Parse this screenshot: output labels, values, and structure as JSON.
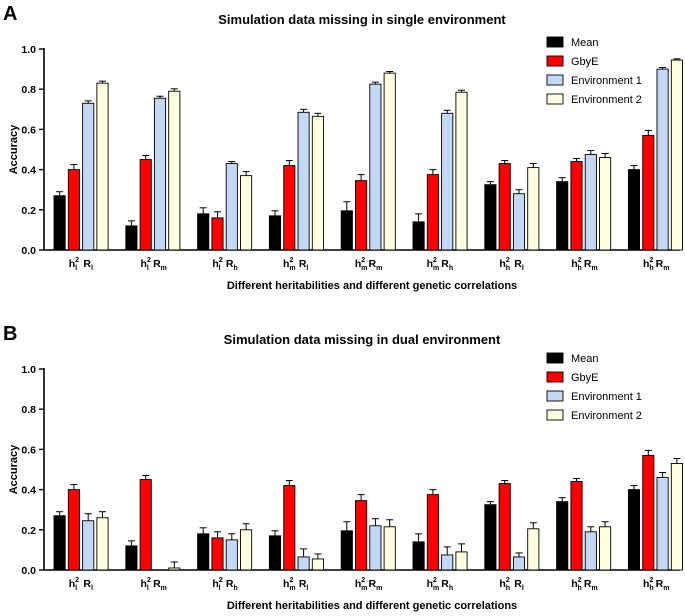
{
  "colors": {
    "Mean": "#000000",
    "GbyE": "#ff0000",
    "Environment 1": "#c3d8f5",
    "Environment 2": "#ffffe0"
  },
  "chart_data": [
    {
      "panel_label": "A",
      "type": "bar",
      "title": "Simulation data missing in single environment",
      "xlabel": "Different heritabilities and different genetic correlations",
      "ylabel": "Accuracy",
      "ylim": [
        0,
        1.0
      ],
      "yticks": [
        "0.0",
        "0.2",
        "0.4",
        "0.6",
        "0.8",
        "1.0"
      ],
      "legend_position": "top-right",
      "group_labels": [
        {
          "h": "l",
          "r": "l"
        },
        {
          "h": "l",
          "r": "m"
        },
        {
          "h": "l",
          "r": "h"
        },
        {
          "h": "m",
          "r": "l"
        },
        {
          "h": "m",
          "r": "m"
        },
        {
          "h": "m",
          "r": "h"
        },
        {
          "h": "h",
          "r": "l"
        },
        {
          "h": "h",
          "r": "m"
        },
        {
          "h": "h",
          "r": "m"
        }
      ],
      "series": [
        {
          "name": "Mean",
          "values": [
            0.27,
            0.12,
            0.18,
            0.17,
            0.195,
            0.14,
            0.325,
            0.34,
            0.4
          ],
          "errors": [
            0.02,
            0.025,
            0.03,
            0.025,
            0.045,
            0.04,
            0.015,
            0.02,
            0.02
          ]
        },
        {
          "name": "GbyE",
          "values": [
            0.4,
            0.45,
            0.16,
            0.42,
            0.345,
            0.375,
            0.43,
            0.44,
            0.57
          ],
          "errors": [
            0.025,
            0.02,
            0.03,
            0.025,
            0.03,
            0.025,
            0.015,
            0.015,
            0.025
          ]
        },
        {
          "name": "Environment 1",
          "values": [
            0.73,
            0.755,
            0.43,
            0.685,
            0.825,
            0.68,
            0.28,
            0.475,
            0.9
          ],
          "errors": [
            0.012,
            0.01,
            0.01,
            0.015,
            0.01,
            0.015,
            0.02,
            0.02,
            0.008
          ]
        },
        {
          "name": "Environment 2",
          "values": [
            0.83,
            0.79,
            0.37,
            0.665,
            0.88,
            0.785,
            0.41,
            0.46,
            0.945
          ],
          "errors": [
            0.01,
            0.012,
            0.02,
            0.015,
            0.008,
            0.01,
            0.02,
            0.02,
            0.006
          ]
        }
      ]
    },
    {
      "panel_label": "B",
      "type": "bar",
      "title": "Simulation data missing in dual environment",
      "xlabel": "Different heritabilities and different genetic correlations",
      "ylabel": "Accuracy",
      "ylim": [
        0,
        1.0
      ],
      "yticks": [
        "0.0",
        "0.2",
        "0.4",
        "0.6",
        "0.8",
        "1.0"
      ],
      "legend_position": "top-right",
      "group_labels": [
        {
          "h": "l",
          "r": "l"
        },
        {
          "h": "l",
          "r": "m"
        },
        {
          "h": "l",
          "r": "h"
        },
        {
          "h": "m",
          "r": "l"
        },
        {
          "h": "m",
          "r": "m"
        },
        {
          "h": "m",
          "r": "h"
        },
        {
          "h": "h",
          "r": "l"
        },
        {
          "h": "h",
          "r": "m"
        },
        {
          "h": "h",
          "r": "m"
        }
      ],
      "series": [
        {
          "name": "Mean",
          "values": [
            0.27,
            0.12,
            0.18,
            0.17,
            0.195,
            0.14,
            0.325,
            0.34,
            0.4
          ],
          "errors": [
            0.02,
            0.025,
            0.03,
            0.025,
            0.045,
            0.04,
            0.015,
            0.02,
            0.02
          ]
        },
        {
          "name": "GbyE",
          "values": [
            0.4,
            0.45,
            0.16,
            0.42,
            0.345,
            0.375,
            0.43,
            0.44,
            0.57
          ],
          "errors": [
            0.025,
            0.02,
            0.03,
            0.025,
            0.03,
            0.025,
            0.015,
            0.015,
            0.025
          ]
        },
        {
          "name": "Environment 1",
          "values": [
            0.245,
            0.0,
            0.15,
            0.065,
            0.22,
            0.075,
            0.065,
            0.19,
            0.46
          ],
          "errors": [
            0.035,
            0.0,
            0.03,
            0.04,
            0.035,
            0.04,
            0.02,
            0.025,
            0.025
          ]
        },
        {
          "name": "Environment 2",
          "values": [
            0.26,
            0.01,
            0.2,
            0.055,
            0.215,
            0.09,
            0.205,
            0.215,
            0.53
          ],
          "errors": [
            0.03,
            0.03,
            0.03,
            0.025,
            0.035,
            0.04,
            0.03,
            0.025,
            0.025
          ]
        }
      ]
    }
  ]
}
